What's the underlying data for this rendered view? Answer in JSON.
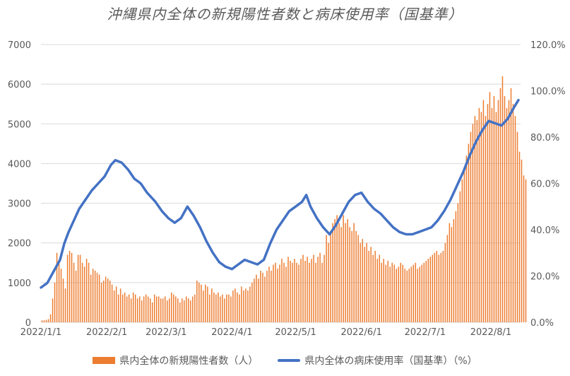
{
  "chart_data": {
    "type": "bar+line",
    "title": "沖縄県内全体の新規陽性者数と病床使用率（国基準）",
    "xlabel": "",
    "ylabel": "",
    "y2label": "",
    "x_tick_labels": [
      "2022/1/1",
      "2022/2/1",
      "2022/3/1",
      "2022/4/1",
      "2022/5/1",
      "2022/6/1",
      "2022/7/1",
      "2022/8/1"
    ],
    "x_tick_dates": [
      "2022-01-01",
      "2022-02-01",
      "2022-03-01",
      "2022-04-01",
      "2022-05-01",
      "2022-06-01",
      "2022-07-01",
      "2022-08-01"
    ],
    "y_left": {
      "min": 0,
      "max": 7000,
      "ticks": [
        "0",
        "1000",
        "2000",
        "3000",
        "4000",
        "5000",
        "6000",
        "7000"
      ]
    },
    "y_right": {
      "min": 0,
      "max": 1.2,
      "ticks": [
        "0.0%",
        "20.0%",
        "40.0%",
        "60.0%",
        "80.0%",
        "100.0%",
        "120.0%"
      ]
    },
    "grid": "horizontal",
    "legend_position": "bottom",
    "colors": {
      "bars": "#ED7D31",
      "line": "#4472C4",
      "grid": "#d9d9d9",
      "text": "#595959"
    },
    "series": [
      {
        "name": "県内全体の新規陽性者数（人）",
        "kind": "bar",
        "axis": "left",
        "start_date": "2022-01-01",
        "values": [
          50,
          50,
          60,
          80,
          200,
          600,
          1000,
          1750,
          1500,
          1350,
          1100,
          850,
          1700,
          1800,
          1750,
          1500,
          1300,
          1700,
          1700,
          1500,
          1400,
          1600,
          1500,
          1200,
          1350,
          1300,
          1250,
          1200,
          1000,
          1050,
          1150,
          1100,
          1050,
          950,
          800,
          900,
          700,
          850,
          700,
          750,
          650,
          700,
          600,
          750,
          700,
          600,
          650,
          550,
          650,
          700,
          650,
          600,
          500,
          700,
          650,
          650,
          600,
          600,
          650,
          550,
          600,
          750,
          700,
          650,
          600,
          500,
          600,
          550,
          650,
          600,
          550,
          650,
          700,
          1050,
          1000,
          950,
          800,
          950,
          900,
          700,
          850,
          750,
          700,
          750,
          650,
          700,
          600,
          700,
          700,
          650,
          800,
          850,
          750,
          700,
          900,
          800,
          850,
          800,
          900,
          1000,
          1100,
          1200,
          1100,
          1300,
          1250,
          1150,
          1300,
          1400,
          1300,
          1450,
          1500,
          1350,
          1450,
          1600,
          1500,
          1400,
          1650,
          1550,
          1500,
          1600,
          1500,
          1450,
          1600,
          1700,
          1550,
          1650,
          1500,
          1600,
          1700,
          1500,
          1650,
          1750,
          1500,
          1700,
          2200,
          2000,
          2300,
          2500,
          2600,
          2700,
          2500,
          2400,
          2700,
          2500,
          2600,
          2400,
          2300,
          2500,
          2300,
          2200,
          2000,
          2100,
          1900,
          2000,
          1800,
          1900,
          1700,
          1800,
          1600,
          1700,
          1500,
          1600,
          1450,
          1550,
          1400,
          1500,
          1450,
          1350,
          1400,
          1500,
          1450,
          1350,
          1300,
          1350,
          1400,
          1450,
          1500,
          1350,
          1400,
          1450,
          1500,
          1550,
          1600,
          1650,
          1700,
          1750,
          1800,
          1700,
          1750,
          1800,
          2000,
          2200,
          2500,
          2400,
          2600,
          2800,
          3000,
          3300,
          3600,
          3900,
          4200,
          4500,
          4800,
          5000,
          5200,
          5100,
          5400,
          5300,
          5600,
          5200,
          5500,
          5800,
          5400,
          5700,
          5300,
          5600,
          5900,
          6200,
          5700,
          5400,
          5600,
          5900,
          5500,
          5200,
          4800,
          4300,
          4100,
          3700,
          3600
        ]
      },
      {
        "name": "県内全体の病床使用率（国基準）（%）",
        "kind": "line",
        "axis": "right",
        "start_date": "2022-01-01",
        "points": [
          [
            "2022-01-01",
            0.15
          ],
          [
            "2022-01-04",
            0.17
          ],
          [
            "2022-01-07",
            0.22
          ],
          [
            "2022-01-10",
            0.27
          ],
          [
            "2022-01-12",
            0.34
          ],
          [
            "2022-01-14",
            0.39
          ],
          [
            "2022-01-16",
            0.43
          ],
          [
            "2022-01-19",
            0.49
          ],
          [
            "2022-01-22",
            0.53
          ],
          [
            "2022-01-25",
            0.57
          ],
          [
            "2022-01-28",
            0.6
          ],
          [
            "2022-01-31",
            0.63
          ],
          [
            "2022-02-03",
            0.68
          ],
          [
            "2022-02-05",
            0.7
          ],
          [
            "2022-02-08",
            0.69
          ],
          [
            "2022-02-11",
            0.66
          ],
          [
            "2022-02-14",
            0.62
          ],
          [
            "2022-02-17",
            0.6
          ],
          [
            "2022-02-20",
            0.56
          ],
          [
            "2022-02-24",
            0.52
          ],
          [
            "2022-02-27",
            0.48
          ],
          [
            "2022-03-02",
            0.45
          ],
          [
            "2022-03-05",
            0.43
          ],
          [
            "2022-03-08",
            0.45
          ],
          [
            "2022-03-11",
            0.5
          ],
          [
            "2022-03-14",
            0.46
          ],
          [
            "2022-03-17",
            0.41
          ],
          [
            "2022-03-20",
            0.35
          ],
          [
            "2022-03-23",
            0.3
          ],
          [
            "2022-03-26",
            0.26
          ],
          [
            "2022-03-29",
            0.24
          ],
          [
            "2022-04-01",
            0.23
          ],
          [
            "2022-04-04",
            0.25
          ],
          [
            "2022-04-07",
            0.27
          ],
          [
            "2022-04-10",
            0.26
          ],
          [
            "2022-04-13",
            0.25
          ],
          [
            "2022-04-16",
            0.27
          ],
          [
            "2022-04-19",
            0.34
          ],
          [
            "2022-04-22",
            0.4
          ],
          [
            "2022-04-25",
            0.44
          ],
          [
            "2022-04-28",
            0.48
          ],
          [
            "2022-05-01",
            0.5
          ],
          [
            "2022-05-04",
            0.52
          ],
          [
            "2022-05-06",
            0.55
          ],
          [
            "2022-05-08",
            0.5
          ],
          [
            "2022-05-11",
            0.45
          ],
          [
            "2022-05-14",
            0.41
          ],
          [
            "2022-05-17",
            0.38
          ],
          [
            "2022-05-20",
            0.42
          ],
          [
            "2022-05-23",
            0.47
          ],
          [
            "2022-05-26",
            0.52
          ],
          [
            "2022-05-29",
            0.55
          ],
          [
            "2022-06-01",
            0.56
          ],
          [
            "2022-06-04",
            0.52
          ],
          [
            "2022-06-07",
            0.49
          ],
          [
            "2022-06-10",
            0.47
          ],
          [
            "2022-06-13",
            0.44
          ],
          [
            "2022-06-16",
            0.41
          ],
          [
            "2022-06-19",
            0.39
          ],
          [
            "2022-06-22",
            0.38
          ],
          [
            "2022-06-25",
            0.38
          ],
          [
            "2022-06-28",
            0.39
          ],
          [
            "2022-07-01",
            0.4
          ],
          [
            "2022-07-04",
            0.41
          ],
          [
            "2022-07-07",
            0.44
          ],
          [
            "2022-07-10",
            0.48
          ],
          [
            "2022-07-13",
            0.53
          ],
          [
            "2022-07-16",
            0.59
          ],
          [
            "2022-07-19",
            0.65
          ],
          [
            "2022-07-22",
            0.72
          ],
          [
            "2022-07-25",
            0.78
          ],
          [
            "2022-07-28",
            0.83
          ],
          [
            "2022-07-31",
            0.87
          ],
          [
            "2022-08-03",
            0.86
          ],
          [
            "2022-08-06",
            0.85
          ],
          [
            "2022-08-09",
            0.88
          ],
          [
            "2022-08-12",
            0.93
          ],
          [
            "2022-08-14",
            0.96
          ]
        ]
      }
    ]
  }
}
